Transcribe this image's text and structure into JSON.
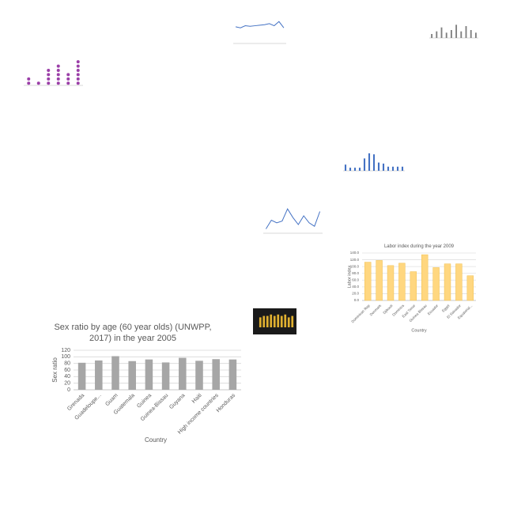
{
  "chart_data": [
    {
      "type": "bar",
      "title": "Sex ratio by age (60 year olds) (UNWPP, 2017) in the year 2005",
      "y_label": "Sex ratio",
      "x_label": "Country",
      "categories": [
        "Grenada",
        "Guadeloupe...",
        "Guam",
        "Guatemala",
        "Guinea",
        "Guinea-Bissau",
        "Guyana",
        "Haiti",
        "High income countries",
        "Honduras"
      ],
      "values": [
        82,
        89,
        102,
        87,
        92,
        83,
        97,
        88,
        93,
        92
      ],
      "color": "#a6a6a6",
      "ylim": [
        0,
        120
      ],
      "yticks": [
        0,
        20,
        40,
        60,
        80,
        100,
        120
      ],
      "grid": true
    },
    {
      "type": "bar",
      "title": "Labor index during the year 2009",
      "y_label": "Labor index",
      "x_label": "Country",
      "categories": [
        "Dominican Rep",
        "Denmark",
        "Djibouti",
        "Dominica",
        "East Timor",
        "Guinea Bissau",
        "Ecuador",
        "Egypt",
        "El Salvador",
        "Equatorial..."
      ],
      "values": [
        113,
        118,
        103,
        110,
        85,
        135,
        97,
        108,
        108,
        73
      ],
      "color": "#ffd780",
      "ylim": [
        0,
        140
      ],
      "yticks": [
        {
          "value": 0,
          "label": "0.0"
        },
        {
          "value": 20,
          "label": "20.0"
        },
        {
          "value": 40,
          "label": "40.0"
        },
        {
          "value": 60,
          "label": "60.0"
        },
        {
          "value": 80,
          "label": "80.0"
        },
        {
          "value": 100,
          "label": "100.0"
        },
        {
          "value": 120,
          "label": "120.0"
        },
        {
          "value": 140,
          "label": "140.0"
        }
      ],
      "grid": true
    },
    {
      "type": "line",
      "values": [
        32,
        30,
        34,
        33,
        34,
        35,
        36,
        38,
        34,
        42,
        30
      ],
      "color": "#4472c4",
      "ylim": [
        0,
        50
      ]
    },
    {
      "type": "bar",
      "values": [
        3,
        5,
        8,
        4,
        6,
        10,
        5,
        9,
        6,
        4
      ],
      "color": "#7f7f7f",
      "ylim": [
        0,
        12
      ]
    },
    {
      "type": "dot",
      "values": [
        2,
        1,
        4,
        5,
        3,
        6
      ],
      "color": "#9b3fa8",
      "ylim": [
        0,
        7
      ]
    },
    {
      "type": "bar",
      "values": [
        6,
        3,
        3,
        3,
        12,
        17,
        16,
        8,
        7,
        4,
        4,
        4,
        4
      ],
      "color": "#4472c4",
      "ylim": [
        0,
        20
      ]
    },
    {
      "type": "line",
      "values": [
        5,
        15,
        12,
        14,
        28,
        18,
        10,
        20,
        12,
        8,
        25
      ],
      "color": "#4472c4",
      "ylim": [
        0,
        30
      ]
    },
    {
      "type": "bar",
      "values": [
        7,
        8,
        8,
        9,
        8,
        9,
        8,
        9,
        7,
        8
      ],
      "color": "#e0b030",
      "ylim": [
        0,
        10
      ]
    }
  ]
}
